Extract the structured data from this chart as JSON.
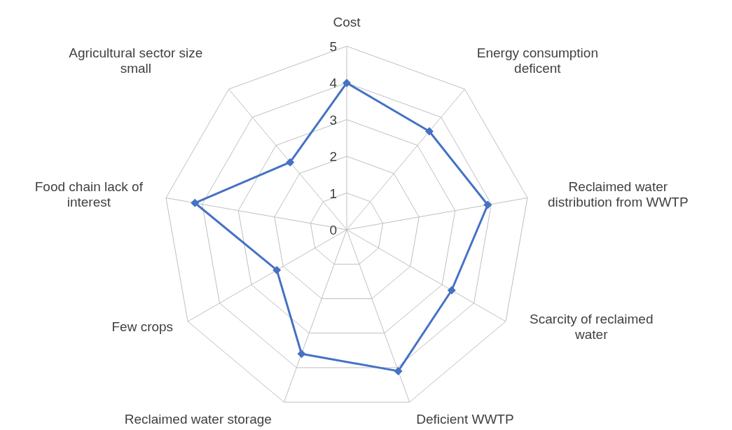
{
  "chart_data": {
    "type": "radar",
    "categories": [
      "Cost",
      "Energy consumption deficent",
      "Reclaimed water distribution from WWTP",
      "Scarcity of reclaimed water",
      "Deficient WWTP",
      "Reclaimed water storage",
      "Few crops",
      "Food chain lack of interest",
      "Agricultural sector size small"
    ],
    "series": [
      {
        "color": "#4472c4",
        "values": [
          4,
          3.5,
          3.9,
          3.3,
          4.1,
          3.6,
          2.2,
          4.2,
          2.4
        ]
      }
    ],
    "ylim": [
      0,
      5
    ],
    "yticks": [
      0,
      1,
      2,
      3,
      4,
      5
    ],
    "grid": true,
    "marker": "diamond",
    "legend": false
  }
}
